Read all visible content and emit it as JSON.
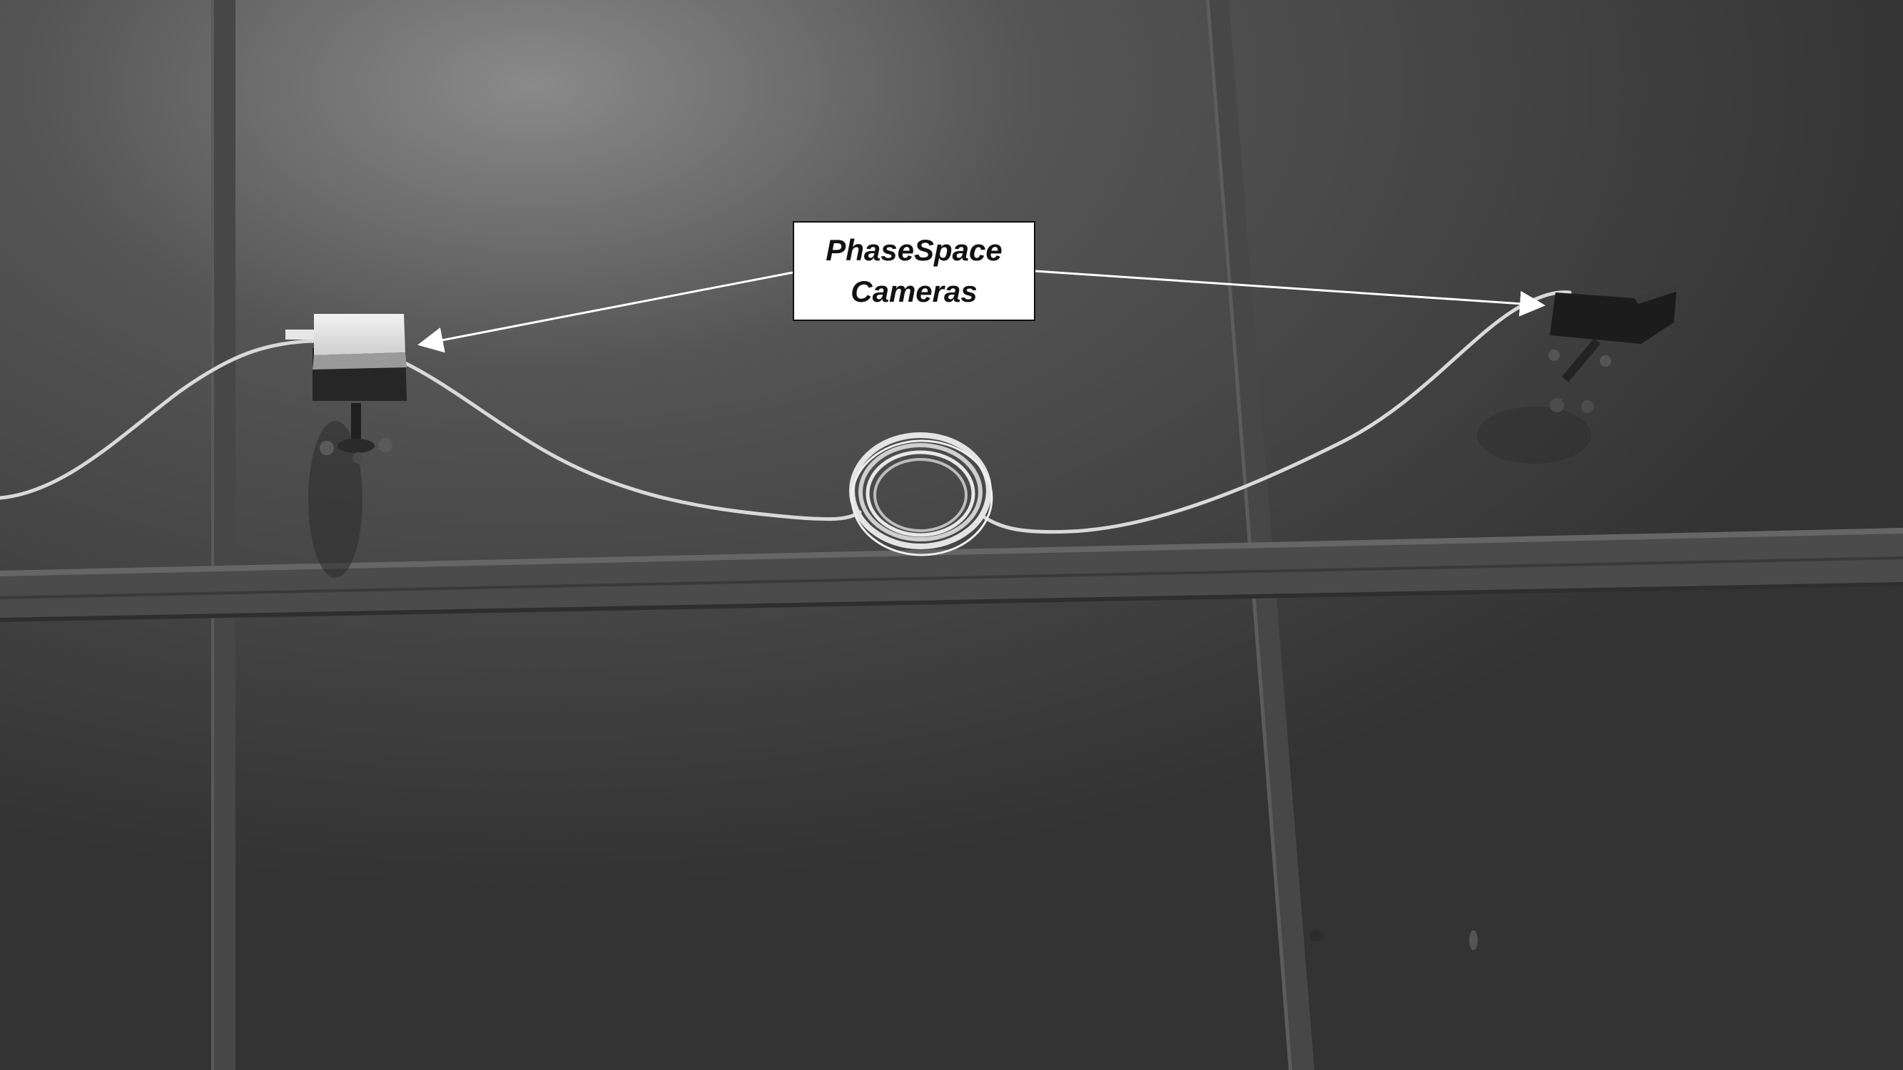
{
  "label": {
    "line1": "PhaseSpace",
    "line2": "Cameras"
  },
  "colors": {
    "wall": "#3d3d3d",
    "frame": "#4a4a4a",
    "cable": "#d8d8d8",
    "label_bg": "#ffffff",
    "label_border": "#111111"
  }
}
